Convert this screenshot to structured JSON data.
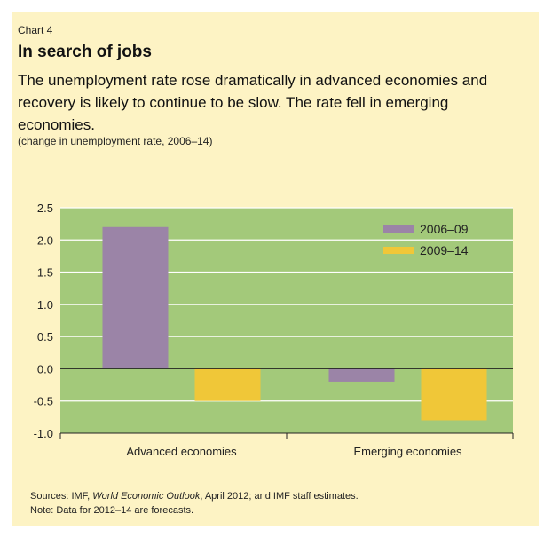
{
  "chart_label": "Chart 4",
  "title": "In search of jobs",
  "subtitle": "The unemployment rate rose dramatically in advanced economies and recovery is likely to continue to be slow. The rate fell in emerging economies.",
  "unit_note": "(change in unemployment rate, 2006–14)",
  "sources": {
    "prefix": "Sources: IMF, ",
    "publication": "World Economic Outlook",
    "suffix": ", April 2012; and IMF staff estimates.",
    "note": "Note: Data for 2012–14 are forecasts."
  },
  "colors": {
    "panel": "#fdf3c4",
    "plot_bg": "#a3c97a",
    "series_2006_09": "#9b84a7",
    "series_2009_14": "#f0c738"
  },
  "chart_data": {
    "type": "bar",
    "categories": [
      "Advanced economies",
      "Emerging economies"
    ],
    "series": [
      {
        "name": "2006–09",
        "values": [
          2.2,
          -0.2
        ]
      },
      {
        "name": "2009–14",
        "values": [
          -0.5,
          -0.8
        ]
      }
    ],
    "yticks": [
      "2.5",
      "2.0",
      "1.5",
      "1.0",
      "0.5",
      "0.0",
      "-0.5",
      "-1.0"
    ],
    "ylim": [
      -1.0,
      2.5
    ],
    "grid": true,
    "legend": "top-right"
  }
}
